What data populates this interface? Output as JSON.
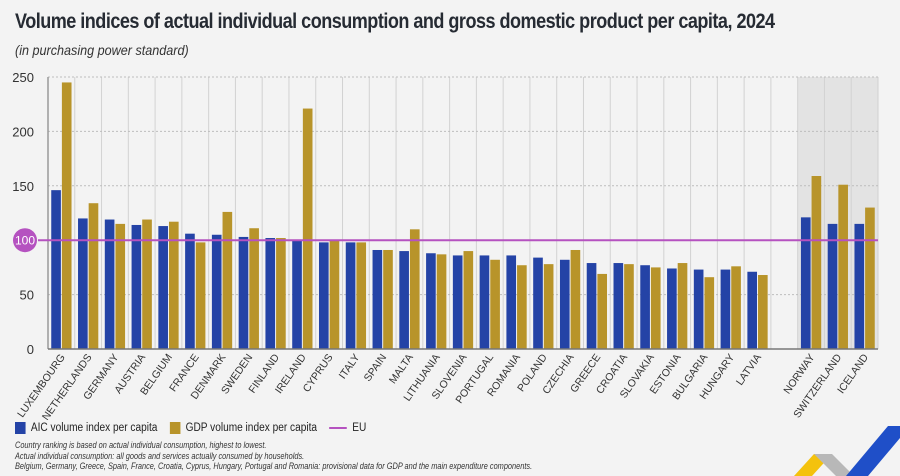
{
  "title": "Volume indices of actual individual consumption and gross domestic product per capita, 2024",
  "subtitle": "(in purchasing power standard)",
  "legend": {
    "aic": "AIC volume index per capita",
    "gdp": "GDP volume index per capita",
    "eu": "EU"
  },
  "notes": [
    "Country ranking is based on actual individual consumption, highest to lowest.",
    "Actual individual consumption: all goods and services actually consumed by households.",
    "Belgium, Germany, Greece, Spain, France, Croatia, Cyprus, Hungary, Portugal and Romania: provisional data for GDP and the main expenditure components."
  ],
  "colors": {
    "aic": "#2443a6",
    "gdp": "#b8942a",
    "eu": "#b552c0",
    "efta_shade": "#e3e3e3"
  },
  "chart_data": {
    "type": "bar",
    "title": "Volume indices of actual individual consumption and gross domestic product per capita, 2024",
    "subtitle": "(in purchasing power standard)",
    "xlabel": "",
    "ylabel": "",
    "ylim": [
      0,
      250
    ],
    "yticks": [
      0,
      50,
      100,
      150,
      200,
      250
    ],
    "grid": true,
    "legend_position": "bottom-left",
    "reference_line": {
      "name": "EU",
      "value": 100,
      "label": "100"
    },
    "categories": [
      "LUXEMBOURG",
      "NETHERLANDS",
      "GERMANY",
      "AUSTRIA",
      "BELGIUM",
      "FRANCE",
      "DENMARK",
      "SWEDEN",
      "FINLAND",
      "IRELAND",
      "CYPRUS",
      "ITALY",
      "SPAIN",
      "MALTA",
      "LITHUANIA",
      "SLOVENIA",
      "PORTUGAL",
      "ROMANIA",
      "POLAND",
      "CZECHIA",
      "GREECE",
      "CROATIA",
      "SLOVAKIA",
      "ESTONIA",
      "BULGARIA",
      "HUNGARY",
      "LATVIA",
      "NORWAY",
      "SWITZERLAND",
      "ICELAND"
    ],
    "group_shaded": [
      "NORWAY",
      "SWITZERLAND",
      "ICELAND"
    ],
    "series": [
      {
        "name": "AIC volume index per capita",
        "values": [
          146,
          120,
          119,
          114,
          113,
          106,
          105,
          103,
          102,
          100,
          98,
          98,
          91,
          90,
          88,
          86,
          86,
          86,
          84,
          82,
          79,
          79,
          77,
          74,
          73,
          73,
          71,
          121,
          115,
          115
        ]
      },
      {
        "name": "GDP volume index per capita",
        "values": [
          245,
          134,
          115,
          119,
          117,
          98,
          126,
          111,
          102,
          221,
          100,
          98,
          91,
          110,
          87,
          90,
          82,
          77,
          78,
          91,
          69,
          78,
          75,
          79,
          66,
          76,
          68,
          159,
          151,
          130
        ]
      }
    ]
  }
}
